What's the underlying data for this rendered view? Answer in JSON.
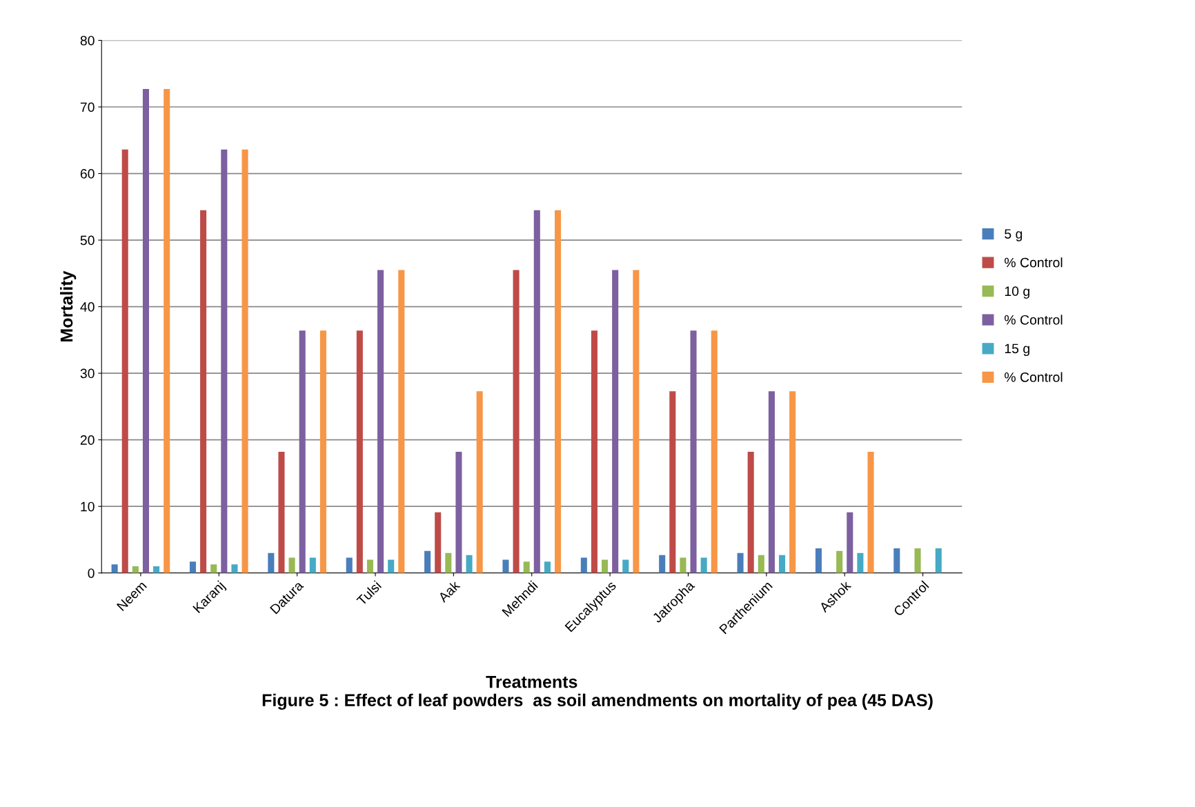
{
  "chart_data": {
    "type": "bar",
    "title": "Figure 5 : Effect of leaf powders  as soil amendments on mortality of pea (45 DAS)",
    "xlabel": "Treatments",
    "ylabel": "Mortality",
    "categories": [
      "Neem",
      "Karanj",
      "Datura",
      "Tulsi",
      "Aak",
      "Mehndi",
      "Eucalyptus",
      "Jatropha",
      "Parthenium",
      "Ashok",
      "Control"
    ],
    "series": [
      {
        "name": "5 g",
        "color": "#4a7ebb",
        "values": [
          1.3,
          1.7,
          3.0,
          2.3,
          3.3,
          2.0,
          2.3,
          2.7,
          3.0,
          3.7,
          3.7
        ]
      },
      {
        "name": "% Control",
        "color": "#be4b48",
        "values": [
          63.6,
          54.5,
          18.2,
          36.4,
          9.1,
          45.5,
          36.4,
          27.3,
          18.2,
          0,
          null
        ]
      },
      {
        "name": "10 g",
        "color": "#98b954",
        "values": [
          1.0,
          1.3,
          2.3,
          2.0,
          3.0,
          1.7,
          2.0,
          2.3,
          2.7,
          3.3,
          3.7
        ]
      },
      {
        "name": "% Control",
        "color": "#7d60a0",
        "values": [
          72.7,
          63.6,
          36.4,
          45.5,
          18.2,
          54.5,
          45.5,
          36.4,
          27.3,
          9.1,
          null
        ]
      },
      {
        "name": "15 g",
        "color": "#46aac5",
        "values": [
          1.0,
          1.3,
          2.3,
          2.0,
          2.7,
          1.7,
          2.0,
          2.3,
          2.7,
          3.0,
          3.7
        ]
      },
      {
        "name": "% Control",
        "color": "#f79646",
        "values": [
          72.7,
          63.6,
          36.4,
          45.5,
          27.3,
          54.5,
          45.5,
          36.4,
          27.3,
          18.2,
          null
        ]
      }
    ],
    "ylim": [
      0,
      80
    ],
    "yticks": [
      0,
      10,
      20,
      30,
      40,
      50,
      60,
      70,
      80
    ],
    "grid": "y",
    "legend": "right"
  }
}
